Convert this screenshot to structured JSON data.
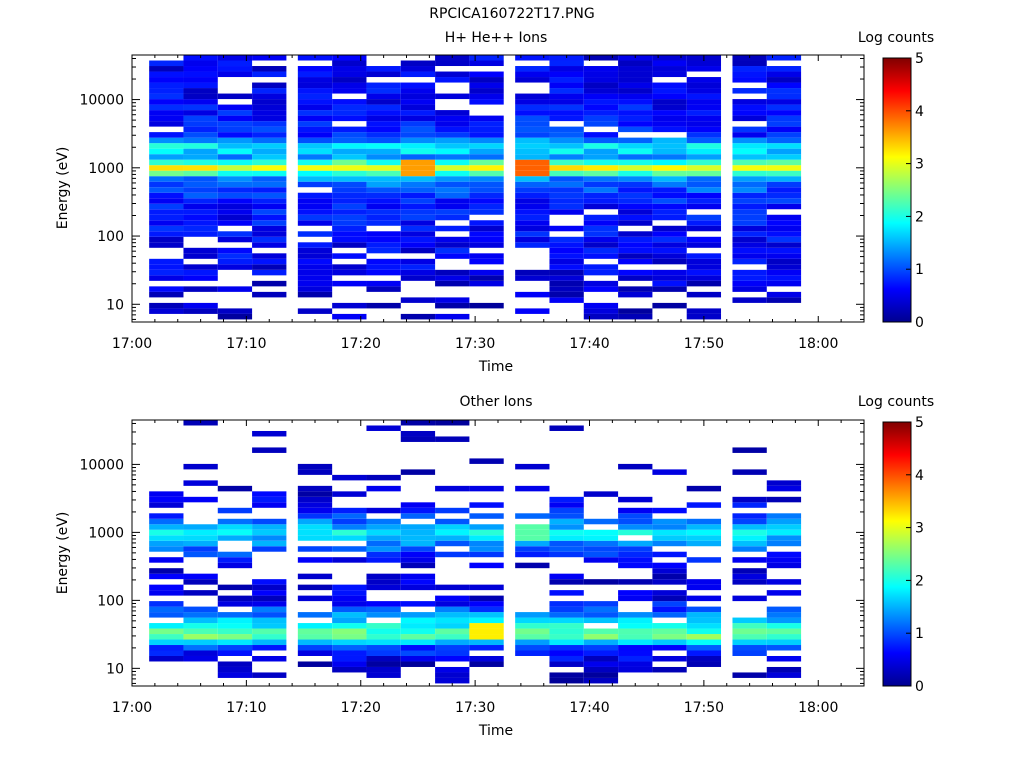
{
  "window_title": "RPCICA160722T17.PNG",
  "colorbar": {
    "label": "Log counts",
    "ticks": [
      0,
      1,
      2,
      3,
      4,
      5
    ],
    "range": [
      0,
      5
    ]
  },
  "chart_data": [
    {
      "type": "heatmap",
      "title": "H+ He++ Ions",
      "xlabel": "Time",
      "ylabel": "Energy (eV)",
      "xticks": [
        "17:00",
        "17:10",
        "17:20",
        "17:30",
        "17:40",
        "17:50",
        "18:00"
      ],
      "xlim": [
        "17:00",
        "18:04"
      ],
      "yscale": "log",
      "ylim": [
        5.5,
        45000
      ],
      "yticks": [
        10,
        100,
        1000,
        10000
      ],
      "time_columns": [
        "17:03",
        "17:06",
        "17:09",
        "17:12",
        "17:16",
        "17:19",
        "17:22",
        "17:25",
        "17:28",
        "17:31",
        "17:35",
        "17:38",
        "17:41",
        "17:44",
        "17:47",
        "17:50",
        "17:54",
        "17:57"
      ],
      "energy_bins": 48,
      "energy_range": [
        6,
        45000
      ],
      "band_profile": [
        {
          "energy": 10,
          "log_counts": 0.3,
          "coverage": 0.55
        },
        {
          "energy": 30,
          "log_counts": 0.5,
          "coverage": 0.75
        },
        {
          "energy": 100,
          "log_counts": 0.6,
          "coverage": 0.85
        },
        {
          "energy": 300,
          "log_counts": 0.7,
          "coverage": 0.85
        },
        {
          "energy": 700,
          "log_counts": 1.3,
          "coverage": 1.0
        },
        {
          "energy": 1000,
          "log_counts": 3.1,
          "coverage": 1.0
        },
        {
          "energy": 1400,
          "log_counts": 1.3,
          "coverage": 1.0
        },
        {
          "energy": 2000,
          "log_counts": 1.9,
          "coverage": 1.0
        },
        {
          "energy": 3000,
          "log_counts": 0.8,
          "coverage": 0.95
        },
        {
          "energy": 10000,
          "log_counts": 0.6,
          "coverage": 0.85
        },
        {
          "energy": 40000,
          "log_counts": 0.5,
          "coverage": 0.85
        }
      ],
      "hot_spots": [
        {
          "time": "17:25",
          "energy": 1000,
          "log_counts": 3.6
        },
        {
          "time": "17:35",
          "energy": 1000,
          "log_counts": 3.9
        }
      ]
    },
    {
      "type": "heatmap",
      "title": "Other Ions",
      "xlabel": "Time",
      "ylabel": "Energy (eV)",
      "xticks": [
        "17:00",
        "17:10",
        "17:20",
        "17:30",
        "17:40",
        "17:50",
        "18:00"
      ],
      "xlim": [
        "17:00",
        "18:04"
      ],
      "yscale": "log",
      "ylim": [
        5.5,
        45000
      ],
      "yticks": [
        10,
        100,
        1000,
        10000
      ],
      "time_columns": [
        "17:03",
        "17:06",
        "17:09",
        "17:12",
        "17:16",
        "17:19",
        "17:22",
        "17:25",
        "17:28",
        "17:31",
        "17:35",
        "17:38",
        "17:41",
        "17:44",
        "17:47",
        "17:50",
        "17:54",
        "17:57"
      ],
      "energy_bins": 48,
      "energy_range": [
        6,
        45000
      ],
      "band_profile": [
        {
          "energy": 10,
          "log_counts": 0.2,
          "coverage": 0.55
        },
        {
          "energy": 20,
          "log_counts": 0.9,
          "coverage": 1.0
        },
        {
          "energy": 30,
          "log_counts": 2.5,
          "coverage": 1.0
        },
        {
          "energy": 40,
          "log_counts": 2.0,
          "coverage": 1.0
        },
        {
          "energy": 100,
          "log_counts": 0.5,
          "coverage": 0.6
        },
        {
          "energy": 300,
          "log_counts": 0.3,
          "coverage": 0.35
        },
        {
          "energy": 1000,
          "log_counts": 1.8,
          "coverage": 1.0
        },
        {
          "energy": 2000,
          "log_counts": 0.7,
          "coverage": 0.7
        },
        {
          "energy": 5000,
          "log_counts": 0.2,
          "coverage": 0.25
        },
        {
          "energy": 20000,
          "log_counts": 0.1,
          "coverage": 0.15
        }
      ],
      "hot_spots": [
        {
          "time": "17:31",
          "energy": 35,
          "log_counts": 3.2
        },
        {
          "time": "17:35",
          "energy": 1000,
          "log_counts": 2.3
        }
      ]
    }
  ]
}
